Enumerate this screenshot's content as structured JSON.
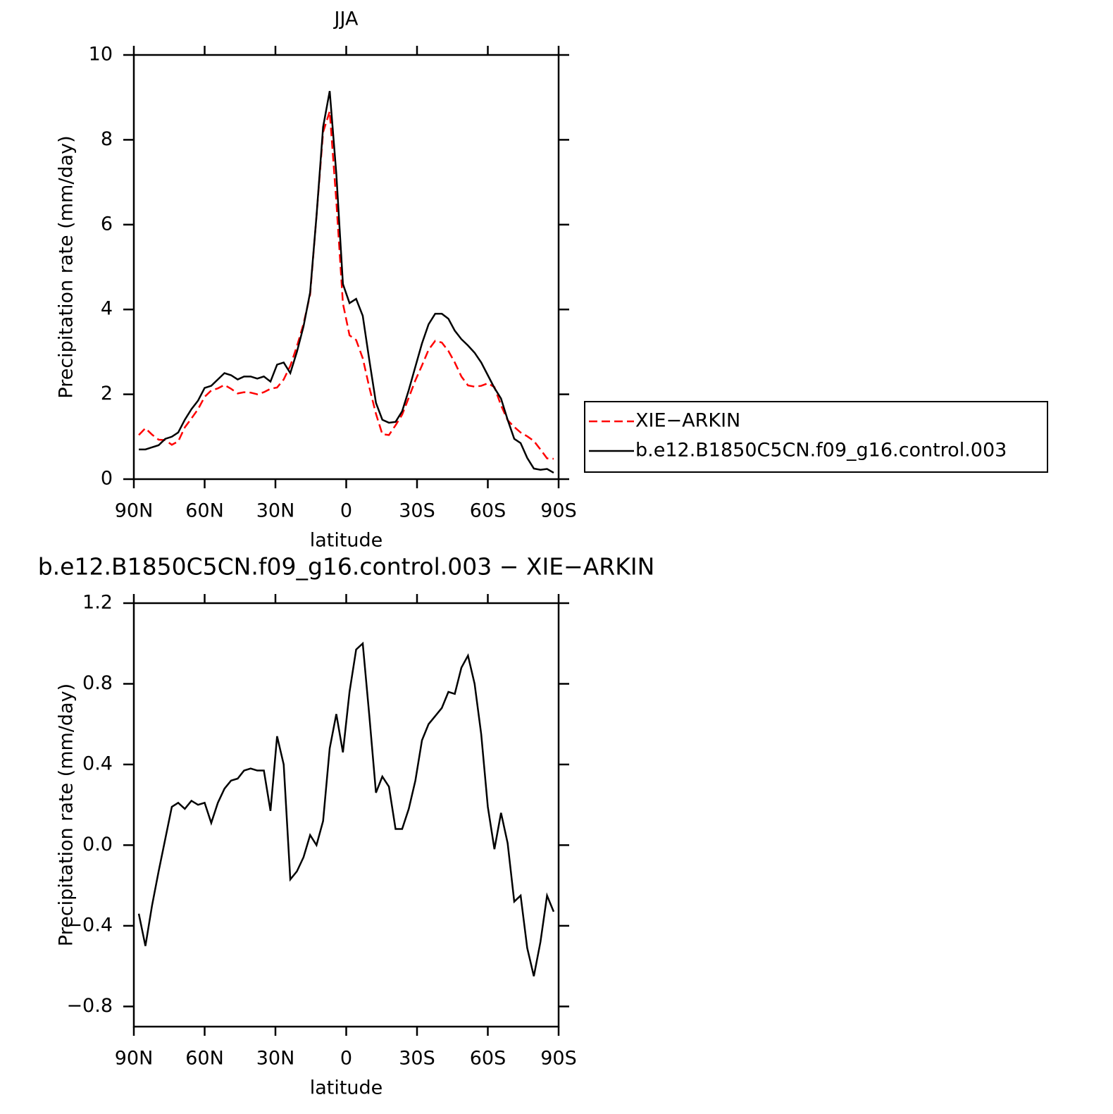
{
  "chart_data": [
    {
      "type": "line",
      "title": "JJA",
      "xlabel": "latitude",
      "ylabel": "Precipitation rate (mm/day)",
      "x": [
        87.9,
        85.1,
        82.3,
        79.5,
        76.7,
        73.9,
        71.2,
        68.4,
        65.6,
        62.8,
        60,
        57.2,
        54.4,
        51.6,
        48.8,
        46,
        43.3,
        40.5,
        37.7,
        34.9,
        32.1,
        29.3,
        26.5,
        23.7,
        20.9,
        18.1,
        15.3,
        12.6,
        9.8,
        7,
        4.2,
        1.4,
        -1.4,
        -4.2,
        -7,
        -9.8,
        -12.6,
        -15.3,
        -18.1,
        -20.9,
        -23.7,
        -26.5,
        -29.3,
        -32.1,
        -34.9,
        -37.7,
        -40.5,
        -43.3,
        -46,
        -48.8,
        -51.6,
        -54.4,
        -57.2,
        -60,
        -62.8,
        -65.6,
        -68.4,
        -71.2,
        -73.9,
        -76.7,
        -79.5,
        -82.3,
        -85.1,
        -87.9
      ],
      "series": [
        {
          "name": "XIE−ARKIN",
          "color": "#ff0000",
          "dash": true,
          "values": [
            1.04,
            1.2,
            1.05,
            0.93,
            0.92,
            0.81,
            0.89,
            1.22,
            1.43,
            1.65,
            1.94,
            2.09,
            2.14,
            2.22,
            2.13,
            2.02,
            2.05,
            2.04,
            2.0,
            2.05,
            2.13,
            2.16,
            2.35,
            2.67,
            3.13,
            3.66,
            4.35,
            6.2,
            8.18,
            8.67,
            6.55,
            4.14,
            3.39,
            3.28,
            2.85,
            2.16,
            1.54,
            1.06,
            1.04,
            1.27,
            1.52,
            1.92,
            2.33,
            2.68,
            3.05,
            3.26,
            3.22,
            3.02,
            2.75,
            2.42,
            2.21,
            2.18,
            2.2,
            2.26,
            2.17,
            1.74,
            1.39,
            1.23,
            1.1,
            1.01,
            0.9,
            0.7,
            0.49,
            0.48
          ]
        },
        {
          "name": "b.e12.B1850C5CN.f09_g16.control.003",
          "color": "#000000",
          "dash": false,
          "values": [
            0.7,
            0.7,
            0.75,
            0.8,
            0.95,
            1.0,
            1.1,
            1.4,
            1.65,
            1.85,
            2.15,
            2.2,
            2.35,
            2.5,
            2.45,
            2.35,
            2.42,
            2.42,
            2.37,
            2.42,
            2.3,
            2.7,
            2.75,
            2.5,
            3.0,
            3.6,
            4.4,
            6.2,
            8.3,
            9.15,
            7.2,
            4.6,
            4.15,
            4.25,
            3.85,
            2.8,
            1.8,
            1.4,
            1.33,
            1.35,
            1.6,
            2.1,
            2.65,
            3.2,
            3.65,
            3.9,
            3.9,
            3.78,
            3.5,
            3.3,
            3.15,
            2.98,
            2.75,
            2.45,
            2.15,
            1.9,
            1.4,
            0.95,
            0.85,
            0.5,
            0.25,
            0.22,
            0.24,
            0.15
          ]
        }
      ],
      "xlim": [
        90,
        -90
      ],
      "xticks": [
        {
          "value": 90,
          "label": "90N"
        },
        {
          "value": 60,
          "label": "60N"
        },
        {
          "value": 30,
          "label": "30N"
        },
        0,
        {
          "value": -30,
          "label": "30S"
        },
        {
          "value": -60,
          "label": "60S"
        },
        {
          "value": -90,
          "label": "90S"
        }
      ],
      "ylim": [
        0,
        10
      ],
      "yticks": [
        0,
        2,
        4,
        6,
        8,
        10
      ],
      "grid": false,
      "legend": "right"
    },
    {
      "type": "line",
      "title": "b.e12.B1850C5CN.f09_g16.control.003 − XIE−ARKIN",
      "xlabel": "latitude",
      "ylabel": "Precipitation rate (mm/day)",
      "x": [
        87.9,
        85.1,
        82.3,
        79.5,
        76.7,
        73.9,
        71.2,
        68.4,
        65.6,
        62.8,
        60,
        57.2,
        54.4,
        51.6,
        48.8,
        46,
        43.3,
        40.5,
        37.7,
        34.9,
        32.1,
        29.3,
        26.5,
        23.7,
        20.9,
        18.1,
        15.3,
        12.6,
        9.8,
        7,
        4.2,
        1.4,
        -1.4,
        -4.2,
        -7,
        -9.8,
        -12.6,
        -15.3,
        -18.1,
        -20.9,
        -23.7,
        -26.5,
        -29.3,
        -32.1,
        -34.9,
        -37.7,
        -40.5,
        -43.3,
        -46,
        -48.8,
        -51.6,
        -54.4,
        -57.2,
        -60,
        -62.8,
        -65.6,
        -68.4,
        -71.2,
        -73.9,
        -76.7,
        -79.5,
        -82.3,
        -85.1,
        -87.9
      ],
      "series": [
        {
          "color": "#000000",
          "dash": false,
          "values": [
            -0.34,
            -0.5,
            -0.3,
            -0.13,
            0.03,
            0.19,
            0.21,
            0.18,
            0.22,
            0.2,
            0.21,
            0.11,
            0.21,
            0.28,
            0.32,
            0.33,
            0.37,
            0.38,
            0.37,
            0.37,
            0.17,
            0.54,
            0.4,
            -0.17,
            -0.13,
            -0.06,
            0.05,
            0.0,
            0.12,
            0.48,
            0.65,
            0.46,
            0.76,
            0.97,
            1.0,
            0.64,
            0.26,
            0.34,
            0.29,
            0.08,
            0.08,
            0.18,
            0.32,
            0.52,
            0.6,
            0.64,
            0.68,
            0.76,
            0.75,
            0.88,
            0.94,
            0.8,
            0.55,
            0.19,
            -0.02,
            0.16,
            0.01,
            -0.28,
            -0.25,
            -0.51,
            -0.65,
            -0.48,
            -0.25,
            -0.33
          ]
        }
      ],
      "xlim": [
        90,
        -90
      ],
      "xticks": [
        {
          "value": 90,
          "label": "90N"
        },
        {
          "value": 60,
          "label": "60N"
        },
        {
          "value": 30,
          "label": "30N"
        },
        0,
        {
          "value": -30,
          "label": "30S"
        },
        {
          "value": -60,
          "label": "60S"
        },
        {
          "value": -90,
          "label": "90S"
        }
      ],
      "ylim": [
        -0.9,
        1.2
      ],
      "yticks": [
        {
          "value": -0.8,
          "label": "−0.8"
        },
        {
          "value": -0.4,
          "label": "−0.4"
        },
        {
          "value": 0,
          "label": "0.0"
        },
        0.4,
        0.8,
        1.2
      ],
      "grid": false
    }
  ]
}
